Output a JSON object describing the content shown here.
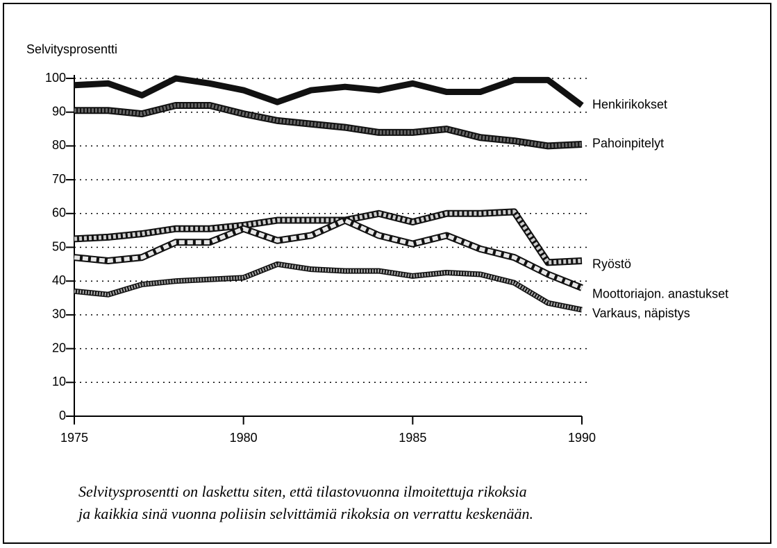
{
  "chart_data": {
    "type": "line",
    "ylabel": "Selvitysprosentti",
    "x": [
      1975,
      1976,
      1977,
      1978,
      1979,
      1980,
      1981,
      1982,
      1983,
      1984,
      1985,
      1986,
      1987,
      1988,
      1989,
      1990
    ],
    "series": [
      {
        "name": "Henkirikokset",
        "color": "#111111",
        "values": [
          98,
          98.5,
          95,
          100,
          98.5,
          96.5,
          93,
          96.5,
          97.5,
          96.5,
          98.5,
          96,
          96,
          99.5,
          99.5,
          92
        ]
      },
      {
        "name": "Pahoinpitelyt",
        "color": "#666666",
        "values": [
          90.5,
          90.5,
          89.5,
          92,
          92,
          89.5,
          87.5,
          86.5,
          85.5,
          84,
          84,
          85,
          82.5,
          81.5,
          80,
          80.5
        ]
      },
      {
        "name": "Ryöstö",
        "color": "#cccccc",
        "values": [
          52.5,
          53,
          54,
          55.5,
          55.5,
          56.5,
          58,
          58,
          58,
          60,
          57.5,
          60,
          60,
          60.5,
          45.5,
          46
        ]
      },
      {
        "name": "Moottoriajon. anastukset",
        "color": "#e6e6e6",
        "values": [
          47,
          46,
          47,
          51.5,
          51.5,
          55.5,
          52,
          53.5,
          58,
          53.5,
          51,
          53.5,
          49.5,
          47,
          42,
          38
        ]
      },
      {
        "name": "Varkaus, näpistys",
        "color": "#aaaaaa",
        "values": [
          37,
          36,
          39,
          40,
          40.5,
          41,
          45,
          43.5,
          43,
          43,
          41.5,
          42.5,
          42,
          39.5,
          33.5,
          31.5
        ]
      }
    ],
    "xlim": [
      1975,
      1990
    ],
    "xticks": [
      1975,
      1980,
      1985,
      1990
    ],
    "ylim": [
      0,
      100
    ],
    "yticks": [
      0,
      10,
      20,
      30,
      40,
      50,
      60,
      70,
      80,
      90,
      100
    ],
    "grid": true,
    "notes": [
      "Selvitysprosentti on laskettu siten, että tilastovuonna ilmoitettuja rikoksia",
      "ja kaikkia  sinä vuonna poliisin selvittämiä rikoksia on verrattu keskenään."
    ]
  }
}
